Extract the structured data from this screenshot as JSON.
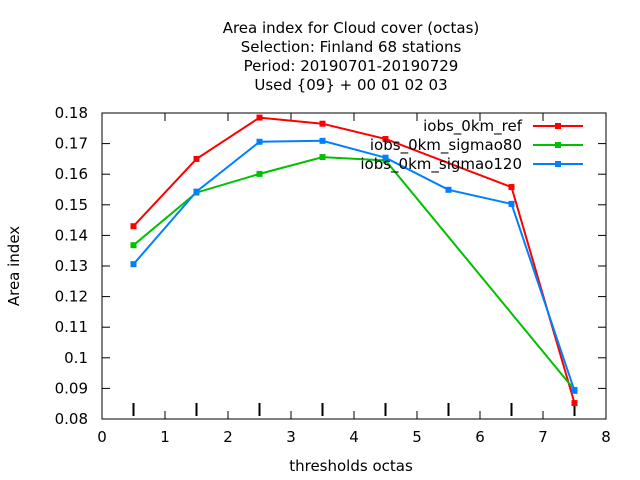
{
  "chart_data": {
    "type": "line",
    "title_lines": [
      "Area index  for Cloud cover (octas)",
      "Selection: Finland     68 stations",
      "Period: 20190701-20190729",
      "Used {09} + 00 01 02 03"
    ],
    "xlabel": "thresholds octas",
    "ylabel": "Area index",
    "xlim": [
      0,
      8
    ],
    "ylim": [
      0.08,
      0.18
    ],
    "xticks": [
      "0",
      "1",
      "2",
      "3",
      "4",
      "5",
      "6",
      "7",
      "8"
    ],
    "yticks": [
      "0.08",
      "0.09",
      "0.1",
      "0.11",
      "0.12",
      "0.13",
      "0.14",
      "0.15",
      "0.16",
      "0.17",
      "0.18"
    ],
    "x": [
      0.5,
      1.5,
      2.5,
      3.5,
      4.5,
      5.5,
      6.5,
      7.5
    ],
    "series": [
      {
        "name": "iobs_0km_ref",
        "color": "#ff0000",
        "values": [
          0.143,
          0.165,
          0.1785,
          0.1765,
          0.1715,
          null,
          0.1558,
          0.0852
        ]
      },
      {
        "name": "iobs_0km_sigmao80",
        "color": "#00c000",
        "values": [
          0.1368,
          0.154,
          0.1601,
          0.1656,
          0.1645,
          null,
          null,
          0.0895
        ]
      },
      {
        "name": "iobs_0km_sigmao120",
        "color": "#0080ff",
        "values": [
          0.1306,
          0.1543,
          0.1706,
          0.1709,
          0.1654,
          0.1549,
          0.1503,
          0.0892
        ]
      }
    ],
    "legend_position": "top-right",
    "threshold_marks_at": [
      0.5,
      1.5,
      2.5,
      3.5,
      4.5,
      5.5,
      6.5,
      7.5
    ],
    "grid": false
  }
}
